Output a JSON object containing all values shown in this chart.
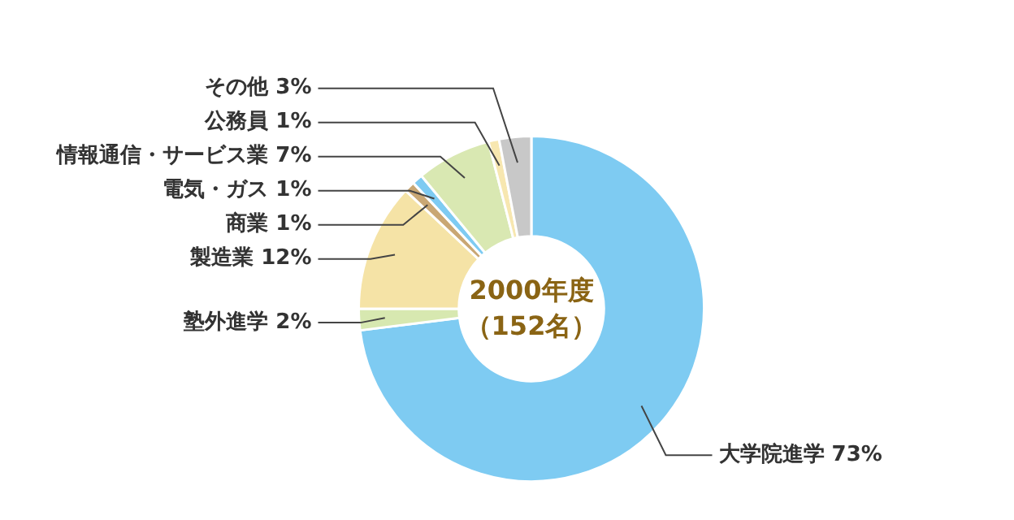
{
  "chart_data": {
    "type": "donut",
    "title": "2000年度",
    "subtitle": "（152名）",
    "categories": [
      "大学院進学",
      "塾外進学",
      "製造業",
      "商業",
      "電気・ガス",
      "情報通信・サービス業",
      "公務員",
      "その他"
    ],
    "values": [
      73,
      2,
      12,
      1,
      1,
      7,
      1,
      3
    ],
    "colors": [
      "#7ecbf2",
      "#d7e8b0",
      "#f5e3a6",
      "#c9a774",
      "#7ecbf2",
      "#d9e8b2",
      "#f7e7b0",
      "#c8c8c8"
    ],
    "value_labels": [
      "73%",
      "2%",
      "12%",
      "1%",
      "1%",
      "7%",
      "1%",
      "3%"
    ],
    "legend": false
  }
}
